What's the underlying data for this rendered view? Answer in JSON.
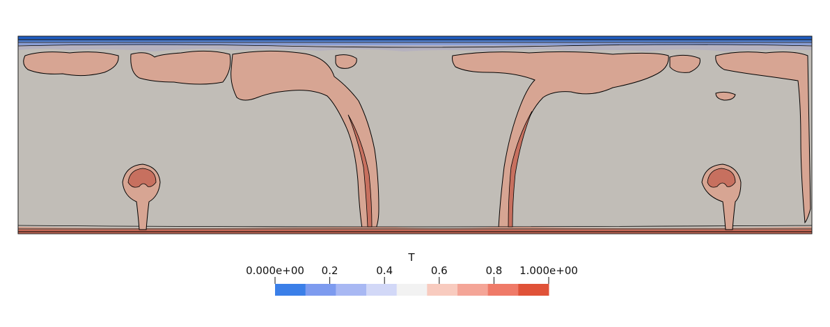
{
  "chart_data": {
    "type": "heatmap",
    "field": "T",
    "colorbar": {
      "title": "T",
      "range": [
        0,
        1
      ],
      "num_bins": 9,
      "tick_values": [
        0,
        0.2,
        0.4,
        0.6,
        0.8,
        1.0
      ],
      "tick_labels": [
        "0.000e+00",
        "0.2",
        "0.4",
        "0.6",
        "0.8",
        "1.000e+00"
      ],
      "bin_colors": [
        "#3b7fe8",
        "#7d9bef",
        "#a8b8f3",
        "#d2d8f7",
        "#f2f2f2",
        "#f8cbbf",
        "#f4a597",
        "#ef7a68",
        "#e05238"
      ]
    },
    "plot_colors": {
      "interior": "#c1bdb7",
      "plume": "#d7a593",
      "hot": "#c7705f",
      "cold": "#3b63b8",
      "border": "#000000"
    }
  }
}
